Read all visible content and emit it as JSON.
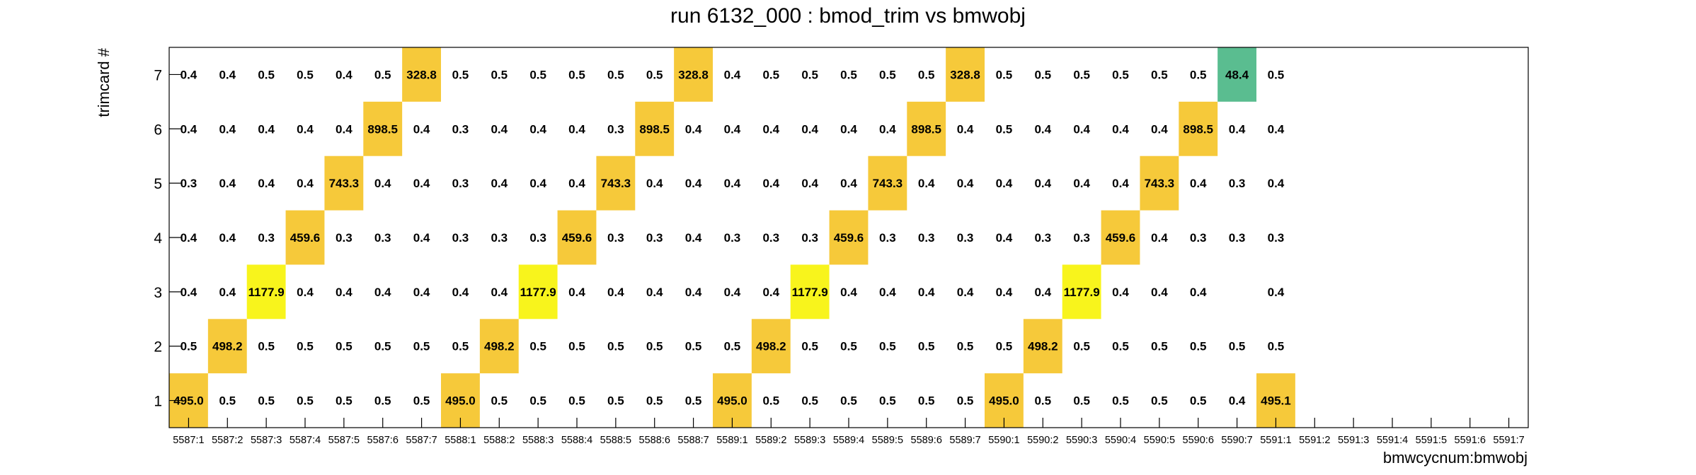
{
  "chart_data": {
    "type": "heatmap",
    "title": "run 6132_000 : bmod_trim vs bmwobj",
    "xlabel": "bmwcycnum:bmwobj",
    "ylabel": "trimcard #",
    "x_categories": [
      "5587:1",
      "5587:2",
      "5587:3",
      "5587:4",
      "5587:5",
      "5587:6",
      "5587:7",
      "5588:1",
      "5588:2",
      "5588:3",
      "5588:4",
      "5588:5",
      "5588:6",
      "5588:7",
      "5589:1",
      "5589:2",
      "5589:3",
      "5589:4",
      "5589:5",
      "5589:6",
      "5589:7",
      "5590:1",
      "5590:2",
      "5590:3",
      "5590:4",
      "5590:5",
      "5590:6",
      "5590:7",
      "5591:1",
      "5591:2",
      "5591:3",
      "5591:4",
      "5591:5",
      "5591:6",
      "5591:7"
    ],
    "y_categories": [
      "1",
      "2",
      "3",
      "4",
      "5",
      "6",
      "7"
    ],
    "labels": [
      [
        "495.0",
        "0.5",
        "0.5",
        "0.5",
        "0.5",
        "0.5",
        "0.5",
        "495.0",
        "0.5",
        "0.5",
        "0.5",
        "0.5",
        "0.5",
        "0.5",
        "495.0",
        "0.5",
        "0.5",
        "0.5",
        "0.5",
        "0.5",
        "0.5",
        "495.0",
        "0.5",
        "0.5",
        "0.5",
        "0.5",
        "0.5",
        "0.4",
        "495.1",
        null,
        null,
        null,
        null,
        null,
        null
      ],
      [
        "0.5",
        "498.2",
        "0.5",
        "0.5",
        "0.5",
        "0.5",
        "0.5",
        "0.5",
        "498.2",
        "0.5",
        "0.5",
        "0.5",
        "0.5",
        "0.5",
        "0.5",
        "498.2",
        "0.5",
        "0.5",
        "0.5",
        "0.5",
        "0.5",
        "0.5",
        "498.2",
        "0.5",
        "0.5",
        "0.5",
        "0.5",
        "0.5",
        "0.5",
        null,
        null,
        null,
        null,
        null,
        null
      ],
      [
        "0.4",
        "0.4",
        "1177.9",
        "0.4",
        "0.4",
        "0.4",
        "0.4",
        "0.4",
        "0.4",
        "1177.9",
        "0.4",
        "0.4",
        "0.4",
        "0.4",
        "0.4",
        "0.4",
        "1177.9",
        "0.4",
        "0.4",
        "0.4",
        "0.4",
        "0.4",
        "0.4",
        "1177.9",
        "0.4",
        "0.4",
        "0.4",
        null,
        "0.4",
        null,
        null,
        null,
        null,
        null,
        null
      ],
      [
        "0.4",
        "0.4",
        "0.3",
        "459.6",
        "0.3",
        "0.3",
        "0.4",
        "0.3",
        "0.3",
        "0.3",
        "459.6",
        "0.3",
        "0.3",
        "0.4",
        "0.3",
        "0.3",
        "0.3",
        "459.6",
        "0.3",
        "0.3",
        "0.3",
        "0.4",
        "0.3",
        "0.3",
        "459.6",
        "0.4",
        "0.3",
        "0.3",
        "0.3",
        null,
        null,
        null,
        null,
        null,
        null
      ],
      [
        "0.3",
        "0.4",
        "0.4",
        "0.4",
        "743.3",
        "0.4",
        "0.4",
        "0.3",
        "0.4",
        "0.4",
        "0.4",
        "743.3",
        "0.4",
        "0.4",
        "0.4",
        "0.4",
        "0.4",
        "0.4",
        "743.3",
        "0.4",
        "0.4",
        "0.4",
        "0.4",
        "0.4",
        "0.4",
        "743.3",
        "0.4",
        "0.3",
        "0.4",
        null,
        null,
        null,
        null,
        null,
        null
      ],
      [
        "0.4",
        "0.4",
        "0.4",
        "0.4",
        "0.4",
        "898.5",
        "0.4",
        "0.3",
        "0.4",
        "0.4",
        "0.4",
        "0.3",
        "898.5",
        "0.4",
        "0.4",
        "0.4",
        "0.4",
        "0.4",
        "0.4",
        "898.5",
        "0.4",
        "0.5",
        "0.4",
        "0.4",
        "0.4",
        "0.4",
        "898.5",
        "0.4",
        "0.4",
        null,
        null,
        null,
        null,
        null,
        null
      ],
      [
        "0.4",
        "0.4",
        "0.5",
        "0.5",
        "0.4",
        "0.5",
        "328.8",
        "0.5",
        "0.5",
        "0.5",
        "0.5",
        "0.5",
        "0.5",
        "328.8",
        "0.4",
        "0.5",
        "0.5",
        "0.5",
        "0.5",
        "0.5",
        "328.8",
        "0.5",
        "0.5",
        "0.5",
        "0.5",
        "0.5",
        "0.5",
        "48.4",
        "0.5",
        null,
        null,
        null,
        null,
        null,
        null
      ]
    ],
    "colors": {
      "high": "#f8f41c",
      "mid": "#f6c93a",
      "low": "#5abd90",
      "frame": "#000000",
      "background": "#ffffff"
    },
    "grid": false,
    "legend": "none"
  }
}
